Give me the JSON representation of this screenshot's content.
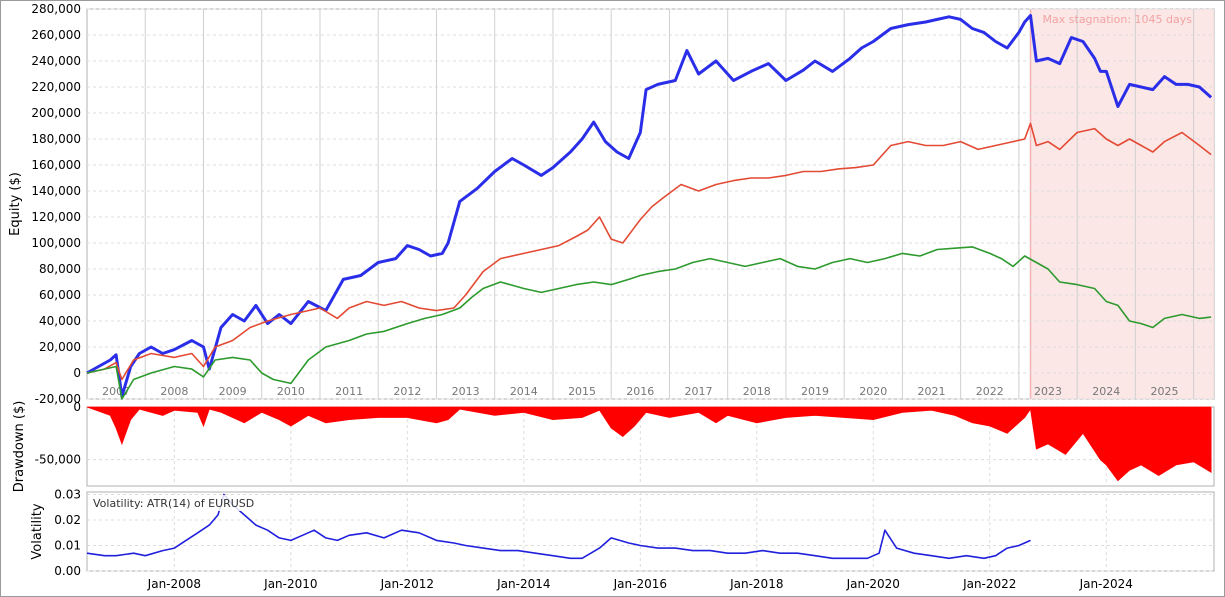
{
  "chart_data": [
    {
      "type": "line",
      "panel": "equity",
      "ylabel": "Equity ($)",
      "ylim": [
        -20000,
        280000
      ],
      "ytick_labels": [
        "-20,000",
        "0",
        "20,000",
        "40,000",
        "60,000",
        "80,000",
        "100,000",
        "120,000",
        "140,000",
        "160,000",
        "180,000",
        "200,000",
        "220,000",
        "240,000",
        "260,000",
        "280,000"
      ],
      "ytick_values": [
        -20000,
        0,
        20000,
        40000,
        60000,
        80000,
        100000,
        120000,
        140000,
        160000,
        180000,
        200000,
        220000,
        240000,
        260000,
        280000
      ],
      "xlim": [
        2006.5,
        2025.85
      ],
      "year_labels": [
        "2007",
        "2008",
        "2009",
        "2010",
        "2011",
        "2012",
        "2013",
        "2014",
        "2015",
        "2016",
        "2017",
        "2018",
        "2019",
        "2020",
        "2021",
        "2022",
        "2023",
        "2024",
        "2025"
      ],
      "year_label_x": [
        2007.0,
        2008.0,
        2009.0,
        2010.0,
        2011.0,
        2012.0,
        2013.0,
        2014.0,
        2015.0,
        2016.0,
        2017.0,
        2018.0,
        2019.0,
        2020.0,
        2021.0,
        2022.0,
        2023.0,
        2024.0,
        2025.0
      ],
      "annotation": "Max stagnation: 1045 days",
      "stagnation_range": [
        2022.7,
        2025.85
      ],
      "grid": true,
      "series": [
        {
          "color": "#2a2ee8",
          "x": [
            2006.5,
            2006.7,
            2006.9,
            2007.0,
            2007.1,
            2007.25,
            2007.4,
            2007.6,
            2007.8,
            2008.0,
            2008.3,
            2008.5,
            2008.6,
            2008.8,
            2009.0,
            2009.2,
            2009.4,
            2009.6,
            2009.8,
            2010.0,
            2010.3,
            2010.6,
            2010.9,
            2011.2,
            2011.5,
            2011.8,
            2012.0,
            2012.2,
            2012.4,
            2012.6,
            2012.7,
            2012.9,
            2013.2,
            2013.5,
            2013.8,
            2014.0,
            2014.3,
            2014.5,
            2014.8,
            2015.0,
            2015.2,
            2015.4,
            2015.6,
            2015.8,
            2016.0,
            2016.1,
            2016.3,
            2016.6,
            2016.8,
            2017.0,
            2017.3,
            2017.6,
            2017.9,
            2018.2,
            2018.5,
            2018.8,
            2019.0,
            2019.3,
            2019.6,
            2019.8,
            2020.0,
            2020.3,
            2020.6,
            2020.9,
            2021.1,
            2021.3,
            2021.5,
            2021.7,
            2021.9,
            2022.1,
            2022.3,
            2022.5,
            2022.6,
            2022.7,
            2022.8,
            2023.0,
            2023.2,
            2023.4,
            2023.6,
            2023.8,
            2023.9,
            2024.0,
            2024.2,
            2024.4,
            2024.6,
            2024.8,
            2025.0,
            2025.2,
            2025.4,
            2025.6,
            2025.8
          ],
          "y": [
            0,
            5000,
            10000,
            14000,
            -18000,
            5000,
            15000,
            20000,
            15000,
            18000,
            25000,
            20000,
            3000,
            35000,
            45000,
            40000,
            52000,
            38000,
            45000,
            38000,
            55000,
            48000,
            72000,
            75000,
            85000,
            88000,
            98000,
            95000,
            90000,
            92000,
            100000,
            132000,
            142000,
            155000,
            165000,
            160000,
            152000,
            158000,
            170000,
            180000,
            193000,
            178000,
            170000,
            165000,
            185000,
            218000,
            222000,
            225000,
            248000,
            230000,
            240000,
            225000,
            232000,
            238000,
            225000,
            233000,
            240000,
            232000,
            242000,
            250000,
            255000,
            265000,
            268000,
            270000,
            272000,
            274000,
            272000,
            265000,
            262000,
            255000,
            250000,
            262000,
            270000,
            275000,
            240000,
            242000,
            238000,
            258000,
            255000,
            242000,
            232000,
            232000,
            205000,
            222000,
            220000,
            218000,
            228000,
            222000,
            222000,
            220000,
            212000
          ]
        },
        {
          "color": "#e34a33",
          "x": [
            2006.5,
            2006.8,
            2007.0,
            2007.1,
            2007.3,
            2007.6,
            2008.0,
            2008.3,
            2008.5,
            2008.7,
            2009.0,
            2009.3,
            2009.6,
            2010.0,
            2010.3,
            2010.5,
            2010.8,
            2011.0,
            2011.3,
            2011.6,
            2011.9,
            2012.2,
            2012.5,
            2012.8,
            2013.0,
            2013.3,
            2013.6,
            2014.0,
            2014.3,
            2014.6,
            2014.9,
            2015.1,
            2015.3,
            2015.5,
            2015.7,
            2016.0,
            2016.2,
            2016.4,
            2016.7,
            2017.0,
            2017.3,
            2017.6,
            2017.9,
            2018.2,
            2018.5,
            2018.8,
            2019.1,
            2019.4,
            2019.7,
            2020.0,
            2020.3,
            2020.6,
            2020.9,
            2021.2,
            2021.5,
            2021.8,
            2022.1,
            2022.4,
            2022.6,
            2022.7,
            2022.8,
            2023.0,
            2023.2,
            2023.5,
            2023.8,
            2024.0,
            2024.2,
            2024.4,
            2024.6,
            2024.8,
            2025.0,
            2025.3,
            2025.6,
            2025.8
          ],
          "y": [
            0,
            3000,
            8000,
            -5000,
            10000,
            15000,
            12000,
            15000,
            5000,
            20000,
            25000,
            35000,
            40000,
            45000,
            48000,
            50000,
            42000,
            50000,
            55000,
            52000,
            55000,
            50000,
            48000,
            50000,
            60000,
            78000,
            88000,
            92000,
            95000,
            98000,
            105000,
            110000,
            120000,
            103000,
            100000,
            118000,
            128000,
            135000,
            145000,
            140000,
            145000,
            148000,
            150000,
            150000,
            152000,
            155000,
            155000,
            157000,
            158000,
            160000,
            175000,
            178000,
            175000,
            175000,
            178000,
            172000,
            175000,
            178000,
            180000,
            192000,
            175000,
            178000,
            172000,
            185000,
            188000,
            180000,
            175000,
            180000,
            175000,
            170000,
            178000,
            185000,
            175000,
            168000
          ]
        },
        {
          "color": "#2d9a2d",
          "x": [
            2006.5,
            2006.8,
            2007.0,
            2007.1,
            2007.3,
            2007.6,
            2008.0,
            2008.3,
            2008.5,
            2008.7,
            2009.0,
            2009.3,
            2009.5,
            2009.7,
            2010.0,
            2010.3,
            2010.6,
            2011.0,
            2011.3,
            2011.6,
            2012.0,
            2012.3,
            2012.6,
            2012.9,
            2013.1,
            2013.3,
            2013.6,
            2014.0,
            2014.3,
            2014.6,
            2014.9,
            2015.2,
            2015.5,
            2015.8,
            2016.0,
            2016.3,
            2016.6,
            2016.9,
            2017.2,
            2017.5,
            2017.8,
            2018.1,
            2018.4,
            2018.7,
            2019.0,
            2019.3,
            2019.6,
            2019.9,
            2020.2,
            2020.5,
            2020.8,
            2021.1,
            2021.4,
            2021.7,
            2022.0,
            2022.2,
            2022.4,
            2022.6,
            2022.8,
            2023.0,
            2023.2,
            2023.5,
            2023.8,
            2024.0,
            2024.2,
            2024.4,
            2024.6,
            2024.8,
            2025.0,
            2025.3,
            2025.6,
            2025.8
          ],
          "y": [
            0,
            3000,
            5000,
            -20000,
            -5000,
            0,
            5000,
            3000,
            -3000,
            10000,
            12000,
            10000,
            0,
            -5000,
            -8000,
            10000,
            20000,
            25000,
            30000,
            32000,
            38000,
            42000,
            45000,
            50000,
            58000,
            65000,
            70000,
            65000,
            62000,
            65000,
            68000,
            70000,
            68000,
            72000,
            75000,
            78000,
            80000,
            85000,
            88000,
            85000,
            82000,
            85000,
            88000,
            82000,
            80000,
            85000,
            88000,
            85000,
            88000,
            92000,
            90000,
            95000,
            96000,
            97000,
            92000,
            88000,
            82000,
            90000,
            85000,
            80000,
            70000,
            68000,
            65000,
            55000,
            52000,
            40000,
            38000,
            35000,
            42000,
            45000,
            42000,
            43000
          ]
        }
      ]
    },
    {
      "type": "area",
      "panel": "drawdown",
      "ylabel": "Drawdown ($)",
      "ylim": [
        -75000,
        0
      ],
      "ytick_labels": [
        "0",
        "-50,000"
      ],
      "ytick_values": [
        0,
        -50000
      ],
      "color": "#ff0000",
      "x": [
        2006.5,
        2006.9,
        2007.0,
        2007.1,
        2007.25,
        2007.4,
        2007.8,
        2008.0,
        2008.4,
        2008.5,
        2008.6,
        2008.8,
        2009.2,
        2009.5,
        2009.8,
        2010.0,
        2010.3,
        2010.6,
        2011.0,
        2011.5,
        2012.0,
        2012.5,
        2012.7,
        2012.9,
        2013.5,
        2014.0,
        2014.5,
        2015.0,
        2015.3,
        2015.5,
        2015.7,
        2015.9,
        2016.1,
        2016.5,
        2017.0,
        2017.3,
        2017.5,
        2018.0,
        2018.5,
        2019.0,
        2019.5,
        2020.0,
        2020.5,
        2021.0,
        2021.4,
        2021.7,
        2022.0,
        2022.3,
        2022.6,
        2022.7,
        2022.8,
        2023.0,
        2023.3,
        2023.6,
        2023.9,
        2024.0,
        2024.2,
        2024.4,
        2024.6,
        2024.9,
        2025.2,
        2025.5,
        2025.8
      ],
      "y": [
        0,
        -8000,
        -20000,
        -35000,
        -12000,
        -2000,
        -8000,
        -3000,
        -5000,
        -18000,
        -2000,
        -5000,
        -15000,
        -5000,
        -12000,
        -18000,
        -8000,
        -15000,
        -12000,
        -10000,
        -10000,
        -15000,
        -12000,
        -2000,
        -8000,
        -5000,
        -12000,
        -10000,
        -3000,
        -20000,
        -28000,
        -18000,
        -5000,
        -10000,
        -5000,
        -15000,
        -8000,
        -15000,
        -10000,
        -8000,
        -10000,
        -12000,
        -5000,
        -3000,
        -8000,
        -15000,
        -18000,
        -25000,
        -10000,
        -2000,
        -40000,
        -35000,
        -45000,
        -25000,
        -50000,
        -55000,
        -70000,
        -60000,
        -55000,
        -65000,
        -55000,
        -52000,
        -62000
      ]
    },
    {
      "type": "line",
      "panel": "volatility",
      "ylabel": "Volatility",
      "indicator_label": "Volatility: ATR(14) of EURUSD",
      "ylim": [
        0,
        0.031
      ],
      "ytick_labels": [
        "0.00",
        "0.01",
        "0.02",
        "0.03"
      ],
      "ytick_values": [
        0,
        0.01,
        0.02,
        0.03
      ],
      "xtick_labels": [
        "Jan-2008",
        "Jan-2010",
        "Jan-2012",
        "Jan-2014",
        "Jan-2016",
        "Jan-2018",
        "Jan-2020",
        "Jan-2022",
        "Jan-2024"
      ],
      "xtick_values": [
        2008.0,
        2010.0,
        2012.0,
        2014.0,
        2016.0,
        2018.0,
        2020.0,
        2022.0,
        2024.0
      ],
      "color": "#2020dd",
      "x": [
        2006.5,
        2006.8,
        2007.0,
        2007.3,
        2007.5,
        2007.8,
        2008.0,
        2008.2,
        2008.4,
        2008.6,
        2008.75,
        2008.85,
        2009.0,
        2009.2,
        2009.4,
        2009.6,
        2009.8,
        2010.0,
        2010.2,
        2010.4,
        2010.6,
        2010.8,
        2011.0,
        2011.3,
        2011.6,
        2011.9,
        2012.2,
        2012.5,
        2012.8,
        2013.0,
        2013.3,
        2013.6,
        2013.9,
        2014.2,
        2014.5,
        2014.8,
        2015.0,
        2015.3,
        2015.5,
        2015.8,
        2016.0,
        2016.3,
        2016.6,
        2016.9,
        2017.2,
        2017.5,
        2017.8,
        2018.1,
        2018.4,
        2018.7,
        2019.0,
        2019.3,
        2019.6,
        2019.9,
        2020.1,
        2020.2,
        2020.4,
        2020.7,
        2021.0,
        2021.3,
        2021.6,
        2021.9,
        2022.1,
        2022.3,
        2022.5,
        2022.7
      ],
      "y": [
        0.007,
        0.006,
        0.006,
        0.007,
        0.006,
        0.008,
        0.009,
        0.012,
        0.015,
        0.018,
        0.022,
        0.03,
        0.026,
        0.022,
        0.018,
        0.016,
        0.013,
        0.012,
        0.014,
        0.016,
        0.013,
        0.012,
        0.014,
        0.015,
        0.013,
        0.016,
        0.015,
        0.012,
        0.011,
        0.01,
        0.009,
        0.008,
        0.008,
        0.007,
        0.006,
        0.005,
        0.005,
        0.009,
        0.013,
        0.011,
        0.01,
        0.009,
        0.009,
        0.008,
        0.008,
        0.007,
        0.007,
        0.008,
        0.007,
        0.007,
        0.006,
        0.005,
        0.005,
        0.005,
        0.007,
        0.016,
        0.009,
        0.007,
        0.006,
        0.005,
        0.006,
        0.005,
        0.006,
        0.009,
        0.01,
        0.012
      ]
    }
  ]
}
